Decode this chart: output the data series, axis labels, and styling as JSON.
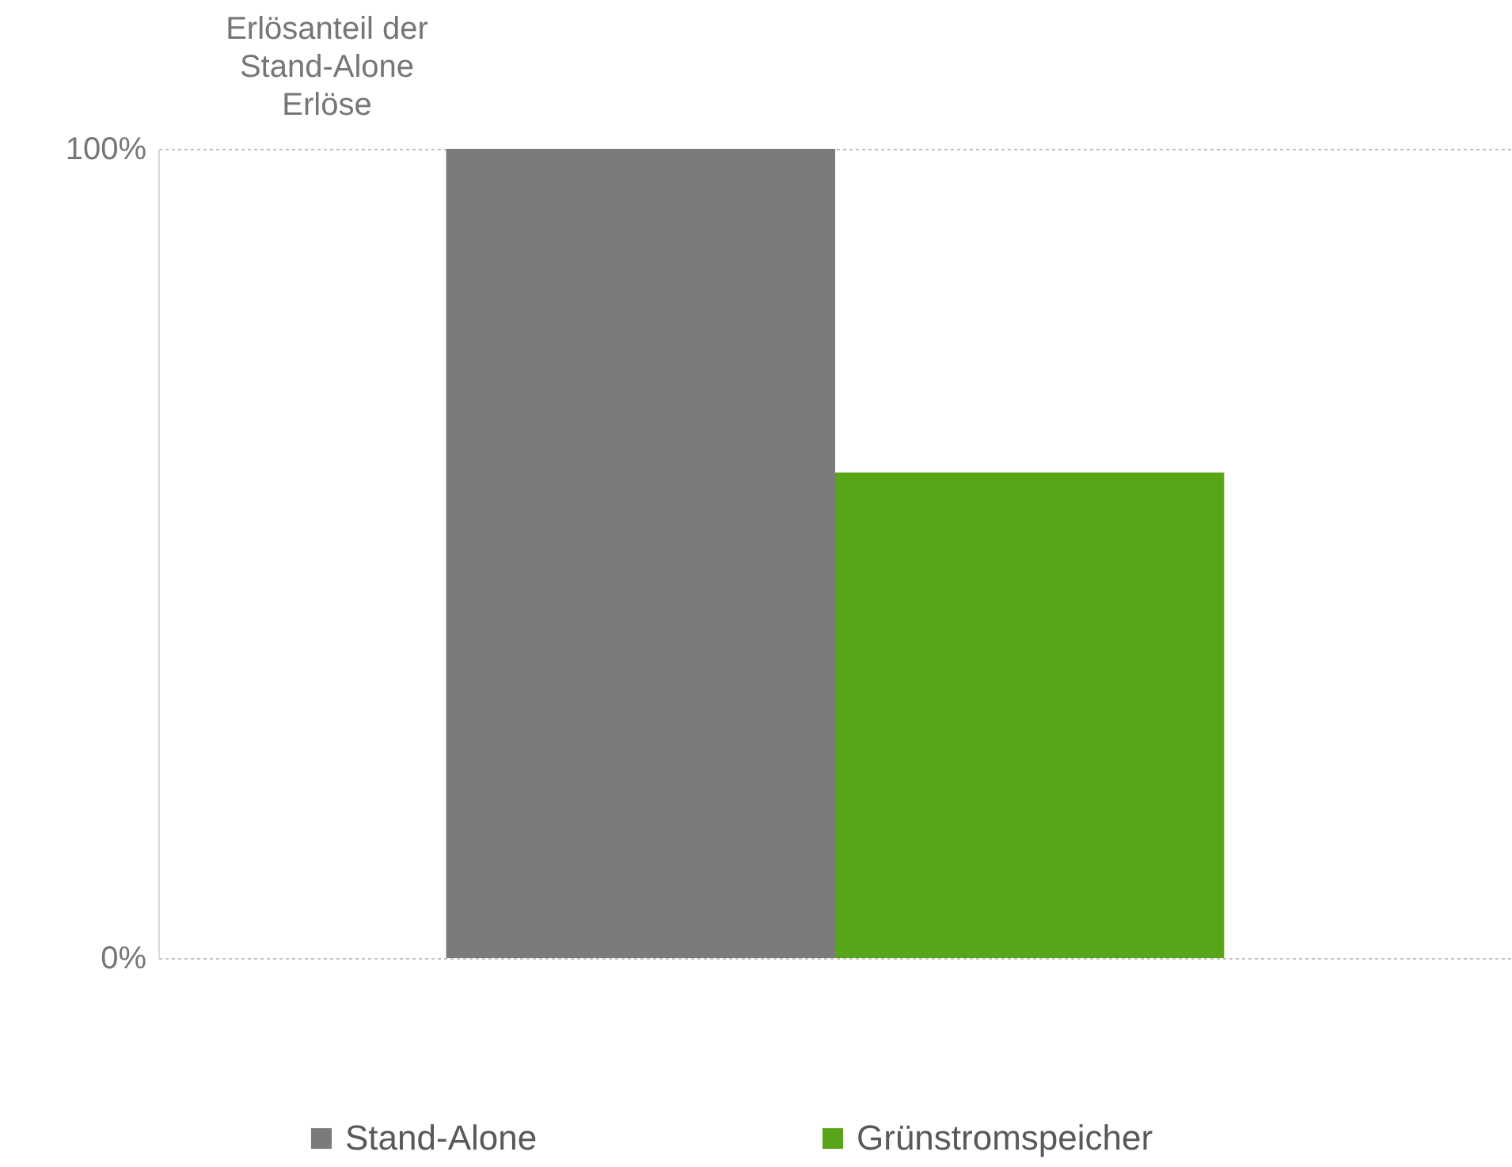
{
  "chart_data": {
    "type": "bar",
    "ylabel": "Erlösanteil der Stand-Alone Erlöse",
    "categories": [
      null
    ],
    "series": [
      {
        "name": "Stand-Alone",
        "color": "#7a7b7a",
        "values": [
          100
        ]
      },
      {
        "name": "Grünstromspeicher",
        "color": "#58a618",
        "values": [
          60
        ]
      }
    ],
    "ylim": [
      0,
      100
    ],
    "yticks": [
      {
        "value": 0,
        "label": "0%"
      },
      {
        "value": 100,
        "label": "100%"
      }
    ],
    "grid": "y",
    "legend": "bottom"
  }
}
